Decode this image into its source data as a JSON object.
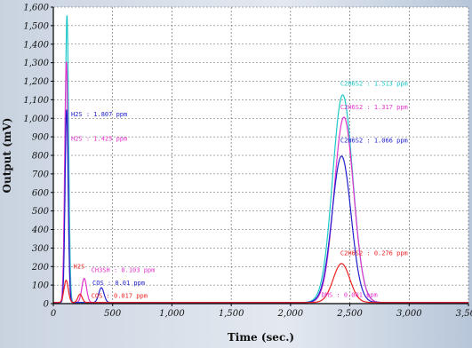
{
  "chart_data": {
    "type": "line",
    "title": "",
    "xlabel": "Time (sec.)",
    "ylabel": "Output (mV)",
    "xlim": [
      0,
      3500
    ],
    "ylim": [
      0,
      1600
    ],
    "x_ticks": [
      0,
      500,
      1000,
      1500,
      2000,
      2500,
      3000,
      3500
    ],
    "x_tick_labels": [
      "0",
      "500",
      "1,000",
      "1,500",
      "2,000",
      "2,500",
      "3,000",
      "3,500"
    ],
    "y_ticks": [
      0,
      100,
      200,
      300,
      400,
      500,
      600,
      700,
      800,
      900,
      1000,
      1100,
      1200,
      1300,
      1400,
      1500,
      1600
    ],
    "y_tick_labels": [
      "0",
      "100",
      "200",
      "300",
      "400",
      "500",
      "600",
      "700",
      "800",
      "900",
      "1,000",
      "1,100",
      "1,200",
      "1,300",
      "1,400",
      "1,500",
      "1,600"
    ],
    "grid": true,
    "colors": {
      "plot_background": "#ffffff",
      "grid": "#555555",
      "axis": "#000000"
    },
    "series": [
      {
        "color": "#1fc8c8",
        "peaks": [
          {
            "x": 115,
            "height": 1550,
            "width": 14
          },
          {
            "x": 2440,
            "height": 1120,
            "width": 85
          }
        ]
      },
      {
        "color": "#e233cc",
        "peaks": [
          {
            "x": 110,
            "height": 1300,
            "width": 14
          },
          {
            "x": 260,
            "height": 130,
            "width": 20
          },
          {
            "x": 2450,
            "height": 1000,
            "width": 82
          }
        ]
      },
      {
        "color": "#2020cc",
        "peaks": [
          {
            "x": 112,
            "height": 1040,
            "width": 13
          },
          {
            "x": 405,
            "height": 80,
            "width": 22
          },
          {
            "x": 2430,
            "height": 790,
            "width": 80
          }
        ]
      },
      {
        "color": "#ee2020",
        "peaks": [
          {
            "x": 108,
            "height": 120,
            "width": 18
          },
          {
            "x": 225,
            "height": 45,
            "width": 18
          },
          {
            "x": 2430,
            "height": 210,
            "width": 70
          }
        ]
      }
    ],
    "annotations": [
      {
        "text": "H2S : 1.807 ppm",
        "color": "#2020cc",
        "x": 150,
        "y": 1010
      },
      {
        "text": "H2S : 1.425 ppm",
        "color": "#e233cc",
        "x": 150,
        "y": 880
      },
      {
        "text": "C2H6S2 : 1.513 ppm",
        "color": "#1fc8c8",
        "x": 2420,
        "y": 1175
      },
      {
        "text": "C2H6S2 : 1.317 ppm",
        "color": "#e233cc",
        "x": 2420,
        "y": 1050
      },
      {
        "text": "C2H6S2 : 1.066 ppm",
        "color": "#2020cc",
        "x": 2420,
        "y": 870
      },
      {
        "text": "C2H6S2 : 0.276 ppm",
        "color": "#ee2020",
        "x": 2420,
        "y": 260
      },
      {
        "text": "DMS : 0.001 ppm",
        "color": "#e233cc",
        "x": 2260,
        "y": 35
      },
      {
        "text": "H2S",
        "color": "#ee2020",
        "x": 170,
        "y": 190
      },
      {
        "text": "CH3SH : 0.103 ppm",
        "color": "#e233cc",
        "x": 320,
        "y": 170
      },
      {
        "text": "COS : 0.01 ppm",
        "color": "#2020cc",
        "x": 330,
        "y": 100
      },
      {
        "text": "COS : 0.017 ppm",
        "color": "#ee2020",
        "x": 320,
        "y": 30
      }
    ]
  }
}
